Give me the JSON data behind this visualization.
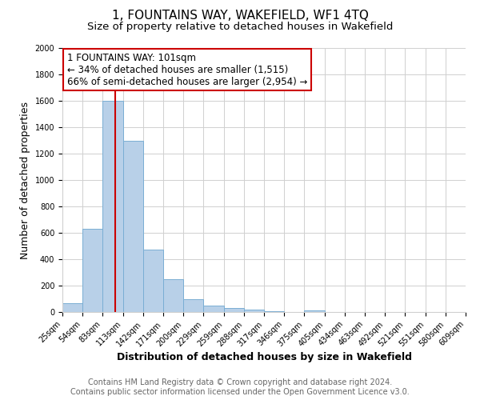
{
  "title": "1, FOUNTAINS WAY, WAKEFIELD, WF1 4TQ",
  "subtitle": "Size of property relative to detached houses in Wakefield",
  "xlabel": "Distribution of detached houses by size in Wakefield",
  "ylabel": "Number of detached properties",
  "bin_edges": [
    25,
    54,
    83,
    113,
    142,
    171,
    200,
    229,
    259,
    288,
    317,
    346,
    375,
    405,
    434,
    463,
    492,
    521,
    551,
    580,
    609
  ],
  "bin_counts": [
    65,
    630,
    1600,
    1300,
    470,
    250,
    100,
    50,
    30,
    20,
    5,
    0,
    15,
    0,
    0,
    0,
    0,
    0,
    0,
    0
  ],
  "tick_labels": [
    "25sqm",
    "54sqm",
    "83sqm",
    "113sqm",
    "142sqm",
    "171sqm",
    "200sqm",
    "229sqm",
    "259sqm",
    "288sqm",
    "317sqm",
    "346sqm",
    "375sqm",
    "405sqm",
    "434sqm",
    "463sqm",
    "492sqm",
    "521sqm",
    "551sqm",
    "580sqm",
    "609sqm"
  ],
  "bar_color": "#b8d0e8",
  "bar_edge_color": "#7aaed4",
  "property_line_x": 101,
  "vline_color": "#cc0000",
  "ylim": [
    0,
    2000
  ],
  "yticks": [
    0,
    200,
    400,
    600,
    800,
    1000,
    1200,
    1400,
    1600,
    1800,
    2000
  ],
  "annotation_title": "1 FOUNTAINS WAY: 101sqm",
  "annotation_line1": "← 34% of detached houses are smaller (1,515)",
  "annotation_line2": "66% of semi-detached houses are larger (2,954) →",
  "annotation_box_color": "#ffffff",
  "annotation_box_edge": "#cc0000",
  "footer_line1": "Contains HM Land Registry data © Crown copyright and database right 2024.",
  "footer_line2": "Contains public sector information licensed under the Open Government Licence v3.0.",
  "bg_color": "#ffffff",
  "grid_color": "#d0d0d0",
  "title_fontsize": 11,
  "subtitle_fontsize": 9.5,
  "axis_label_fontsize": 9,
  "tick_fontsize": 7,
  "footer_fontsize": 7,
  "annotation_fontsize": 8.5
}
